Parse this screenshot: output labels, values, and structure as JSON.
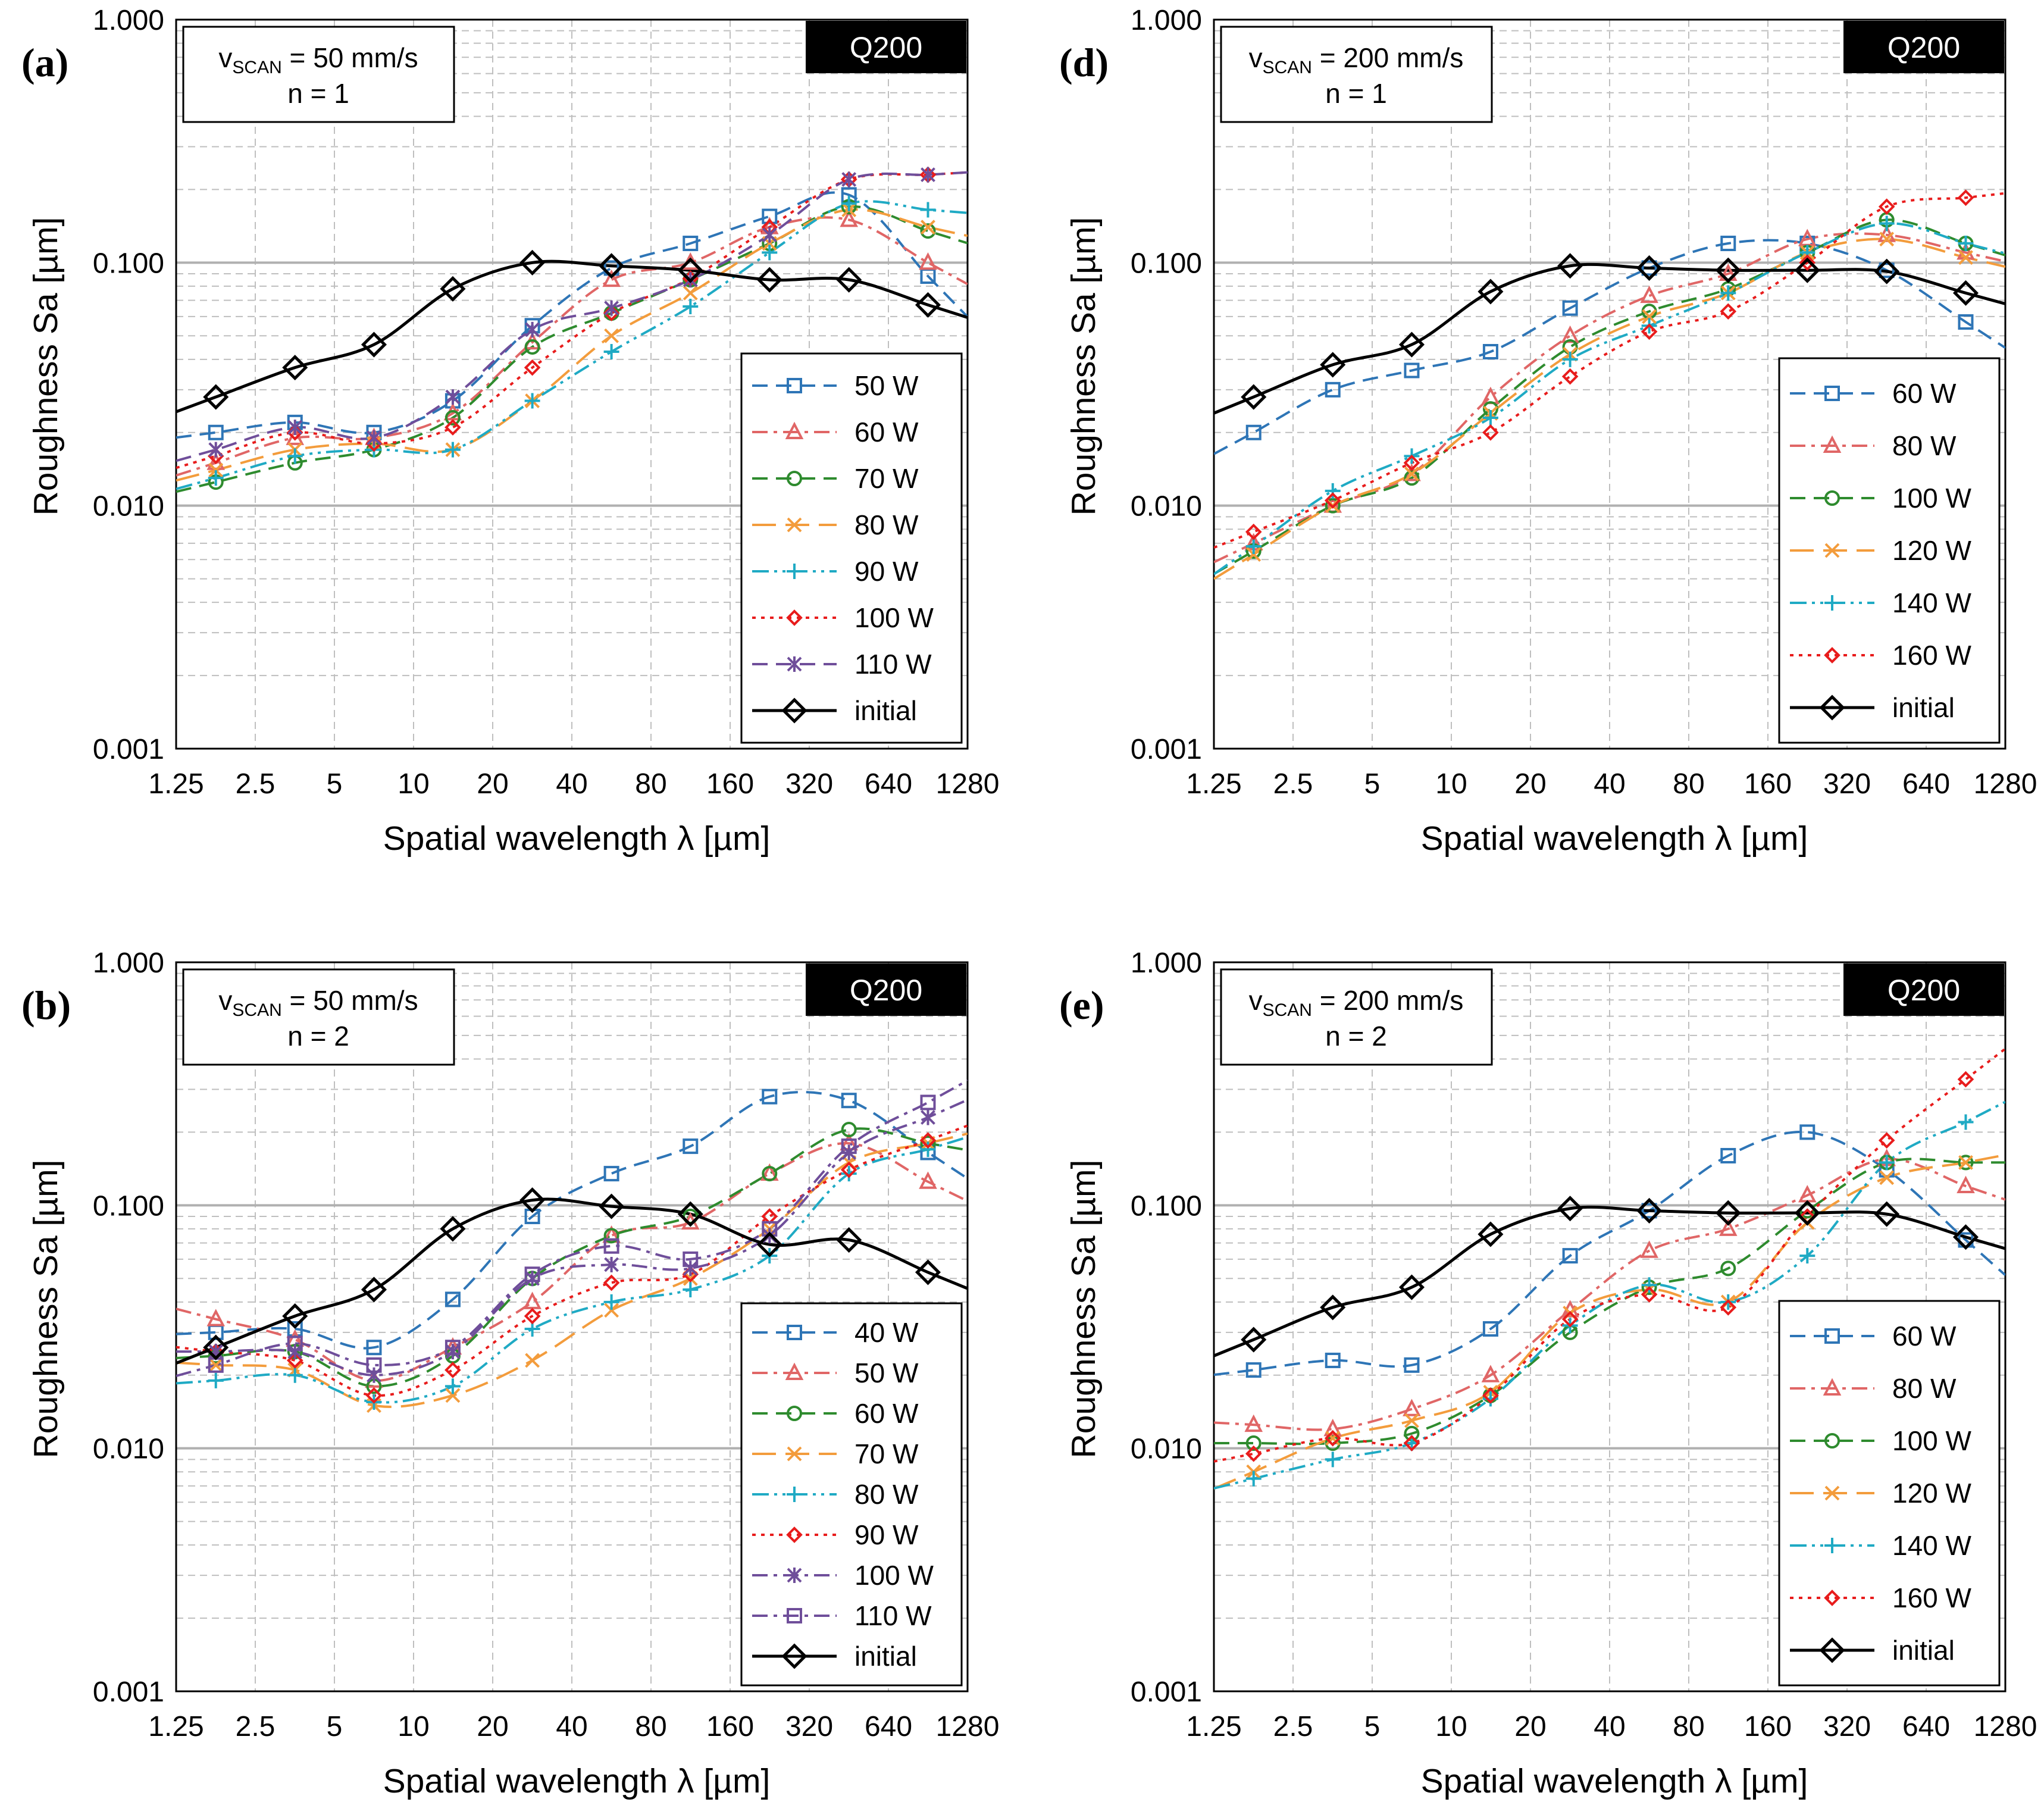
{
  "figure": {
    "y_axis_label": "Roughness Sa [µm]",
    "x_axis_label": "Spatial wavelength λ [µm]",
    "y_tick_labels": [
      "0.001",
      "0.010",
      "0.100",
      "1.000"
    ],
    "x_tick_labels": [
      "1.25",
      "2.5",
      "5",
      "10",
      "20",
      "40",
      "80",
      "160",
      "320",
      "640",
      "1280"
    ],
    "sample_badge": "Q200",
    "colors": {
      "blue": "#2E75B6",
      "salmon": "#E06666",
      "green": "#2E8B2E",
      "orange": "#F39C3C",
      "teal": "#1FAAC4",
      "red": "#E81C1C",
      "purple": "#6F4E9A",
      "black": "#000000",
      "badge_bg": "#000000",
      "badge_text": "#ffffff",
      "grid": "#bfbfbf"
    }
  },
  "chart_data": [
    {
      "id": "a",
      "type": "line",
      "panel_label": "(a)",
      "condition_line1_prefix": "v",
      "condition_line1_subscript": "SCAN",
      "condition_line1_suffix": " = 50 mm/s",
      "condition_line2": "n = 1",
      "badge": "Q200",
      "xscale": "log",
      "yscale": "log",
      "xlim": [
        1.25,
        1280
      ],
      "ylim": [
        0.001,
        1.0
      ],
      "x": [
        1.77,
        3.54,
        7.07,
        14.1,
        28.3,
        56.6,
        113,
        226,
        453,
        905
      ],
      "legend_position": "lower-right",
      "series": [
        {
          "name": "50 W",
          "color": "blue",
          "dash": "dash",
          "marker": "square",
          "values": [
            0.02,
            0.022,
            0.02,
            0.027,
            0.055,
            0.095,
            0.12,
            0.155,
            0.19,
            0.088
          ]
        },
        {
          "name": "60 W",
          "color": "salmon",
          "dash": "dashdot",
          "marker": "triangle",
          "values": [
            0.015,
            0.019,
            0.019,
            0.024,
            0.047,
            0.085,
            0.1,
            0.14,
            0.15,
            0.1
          ]
        },
        {
          "name": "70 W",
          "color": "green",
          "dash": "dash",
          "marker": "circle",
          "values": [
            0.0125,
            0.015,
            0.017,
            0.023,
            0.045,
            0.062,
            0.085,
            0.12,
            0.17,
            0.135
          ]
        },
        {
          "name": "80 W",
          "color": "orange",
          "dash": "longdash",
          "marker": "x",
          "values": [
            0.014,
            0.017,
            0.018,
            0.017,
            0.027,
            0.05,
            0.075,
            0.12,
            0.165,
            0.14
          ]
        },
        {
          "name": "90 W",
          "color": "teal",
          "dash": "dashdotdot",
          "marker": "plus",
          "values": [
            0.013,
            0.016,
            0.017,
            0.017,
            0.027,
            0.043,
            0.066,
            0.11,
            0.175,
            0.165
          ]
        },
        {
          "name": "100 W",
          "color": "red",
          "dash": "dot",
          "marker": "diamond",
          "values": [
            0.016,
            0.02,
            0.018,
            0.021,
            0.037,
            0.062,
            0.086,
            0.14,
            0.22,
            0.23
          ]
        },
        {
          "name": "110 W",
          "color": "purple",
          "dash": "dash",
          "marker": "star",
          "values": [
            0.017,
            0.021,
            0.019,
            0.028,
            0.053,
            0.065,
            0.085,
            0.13,
            0.22,
            0.23
          ]
        },
        {
          "name": "initial",
          "color": "black",
          "dash": "solid",
          "marker": "bigdiamond",
          "values": [
            0.028,
            0.037,
            0.046,
            0.078,
            0.1,
            0.097,
            0.093,
            0.085,
            0.085,
            0.067
          ]
        }
      ]
    },
    {
      "id": "d",
      "type": "line",
      "panel_label": "(d)",
      "condition_line1_prefix": "v",
      "condition_line1_subscript": "SCAN",
      "condition_line1_suffix": " = 200 mm/s",
      "condition_line2": "n = 1",
      "badge": "Q200",
      "xscale": "log",
      "yscale": "log",
      "xlim": [
        1.25,
        1280
      ],
      "ylim": [
        0.001,
        1.0
      ],
      "x": [
        1.77,
        3.54,
        7.07,
        14.1,
        28.3,
        56.6,
        113,
        226,
        453,
        905
      ],
      "legend_position": "lower-right",
      "series": [
        {
          "name": "60 W",
          "color": "blue",
          "dash": "dash",
          "marker": "square",
          "values": [
            0.02,
            0.03,
            0.036,
            0.043,
            0.065,
            0.095,
            0.12,
            0.12,
            0.093,
            0.057
          ]
        },
        {
          "name": "80 W",
          "color": "salmon",
          "dash": "dashdot",
          "marker": "triangle",
          "values": [
            0.007,
            0.01,
            0.0135,
            0.028,
            0.05,
            0.073,
            0.09,
            0.125,
            0.13,
            0.11
          ]
        },
        {
          "name": "100 W",
          "color": "green",
          "dash": "dash",
          "marker": "circle",
          "values": [
            0.0065,
            0.01,
            0.013,
            0.025,
            0.045,
            0.063,
            0.078,
            0.11,
            0.15,
            0.12
          ]
        },
        {
          "name": "120 W",
          "color": "orange",
          "dash": "longdash",
          "marker": "x",
          "values": [
            0.0063,
            0.01,
            0.0135,
            0.024,
            0.042,
            0.06,
            0.075,
            0.11,
            0.125,
            0.105
          ]
        },
        {
          "name": "140 W",
          "color": "teal",
          "dash": "dashdotdot",
          "marker": "plus",
          "values": [
            0.0068,
            0.0115,
            0.016,
            0.023,
            0.04,
            0.055,
            0.075,
            0.11,
            0.145,
            0.12
          ]
        },
        {
          "name": "160 W",
          "color": "red",
          "dash": "dot",
          "marker": "diamond",
          "values": [
            0.0078,
            0.0105,
            0.015,
            0.02,
            0.034,
            0.052,
            0.063,
            0.1,
            0.17,
            0.185
          ]
        },
        {
          "name": "initial",
          "color": "black",
          "dash": "solid",
          "marker": "bigdiamond",
          "values": [
            0.028,
            0.038,
            0.046,
            0.076,
            0.097,
            0.095,
            0.093,
            0.093,
            0.092,
            0.075
          ]
        }
      ]
    },
    {
      "id": "b",
      "type": "line",
      "panel_label": "(b)",
      "condition_line1_prefix": "v",
      "condition_line1_subscript": "SCAN",
      "condition_line1_suffix": " = 50 mm/s",
      "condition_line2": "n = 2",
      "badge": "Q200",
      "xscale": "log",
      "yscale": "log",
      "xlim": [
        1.25,
        1280
      ],
      "ylim": [
        0.001,
        1.0
      ],
      "x": [
        1.77,
        3.54,
        7.07,
        14.1,
        28.3,
        56.6,
        113,
        226,
        453,
        905
      ],
      "legend_position": "lower-right",
      "series": [
        {
          "name": "40 W",
          "color": "blue",
          "dash": "dash",
          "marker": "square",
          "values": [
            0.03,
            0.031,
            0.026,
            0.041,
            0.09,
            0.135,
            0.175,
            0.28,
            0.27,
            0.165
          ]
        },
        {
          "name": "50 W",
          "color": "salmon",
          "dash": "dashdot",
          "marker": "triangle",
          "values": [
            0.034,
            0.028,
            0.019,
            0.026,
            0.04,
            0.075,
            0.085,
            0.135,
            0.18,
            0.125
          ]
        },
        {
          "name": "60 W",
          "color": "green",
          "dash": "dash",
          "marker": "circle",
          "values": [
            0.024,
            0.025,
            0.018,
            0.024,
            0.05,
            0.075,
            0.09,
            0.135,
            0.205,
            0.18
          ]
        },
        {
          "name": "70 W",
          "color": "orange",
          "dash": "longdash",
          "marker": "x",
          "values": [
            0.022,
            0.021,
            0.015,
            0.0165,
            0.023,
            0.037,
            0.05,
            0.08,
            0.15,
            0.18
          ]
        },
        {
          "name": "80 W",
          "color": "teal",
          "dash": "dashdotdot",
          "marker": "plus",
          "values": [
            0.019,
            0.02,
            0.0155,
            0.018,
            0.031,
            0.04,
            0.045,
            0.062,
            0.135,
            0.17
          ]
        },
        {
          "name": "90 W",
          "color": "red",
          "dash": "dot",
          "marker": "diamond",
          "values": [
            0.025,
            0.023,
            0.0165,
            0.021,
            0.035,
            0.048,
            0.052,
            0.09,
            0.14,
            0.185
          ]
        },
        {
          "name": "100 W",
          "color": "purple",
          "dash": "dashdot",
          "marker": "star",
          "values": [
            0.025,
            0.025,
            0.02,
            0.025,
            0.05,
            0.057,
            0.055,
            0.075,
            0.165,
            0.23
          ]
        },
        {
          "name": "110 W",
          "color": "purple",
          "dash": "dashdot",
          "marker": "opensquare",
          "values": [
            0.022,
            0.027,
            0.022,
            0.026,
            0.052,
            0.068,
            0.06,
            0.08,
            0.175,
            0.265
          ]
        },
        {
          "name": "initial",
          "color": "black",
          "dash": "solid",
          "marker": "bigdiamond",
          "values": [
            0.026,
            0.035,
            0.045,
            0.08,
            0.105,
            0.099,
            0.092,
            0.069,
            0.072,
            0.053
          ]
        }
      ]
    },
    {
      "id": "e",
      "type": "line",
      "panel_label": "(e)",
      "condition_line1_prefix": "v",
      "condition_line1_subscript": "SCAN",
      "condition_line1_suffix": " = 200 mm/s",
      "condition_line2": "n = 2",
      "badge": "Q200",
      "xscale": "log",
      "yscale": "log",
      "xlim": [
        1.25,
        1280
      ],
      "ylim": [
        0.001,
        1.0
      ],
      "x": [
        1.77,
        3.54,
        7.07,
        14.1,
        28.3,
        56.6,
        113,
        226,
        453,
        905
      ],
      "legend_position": "lower-right",
      "series": [
        {
          "name": "60 W",
          "color": "blue",
          "dash": "dash",
          "marker": "square",
          "values": [
            0.021,
            0.023,
            0.022,
            0.031,
            0.062,
            0.095,
            0.16,
            0.2,
            0.14,
            0.072
          ]
        },
        {
          "name": "80 W",
          "color": "salmon",
          "dash": "dashdot",
          "marker": "triangle",
          "values": [
            0.0125,
            0.012,
            0.0145,
            0.02,
            0.037,
            0.065,
            0.08,
            0.11,
            0.155,
            0.12
          ]
        },
        {
          "name": "100 W",
          "color": "green",
          "dash": "dash",
          "marker": "circle",
          "values": [
            0.0105,
            0.0105,
            0.0115,
            0.0165,
            0.03,
            0.046,
            0.055,
            0.095,
            0.15,
            0.15
          ]
        },
        {
          "name": "120 W",
          "color": "orange",
          "dash": "longdash",
          "marker": "x",
          "values": [
            0.008,
            0.011,
            0.013,
            0.017,
            0.036,
            0.045,
            0.04,
            0.085,
            0.13,
            0.15
          ]
        },
        {
          "name": "140 W",
          "color": "teal",
          "dash": "dashdotdot",
          "marker": "plus",
          "values": [
            0.0075,
            0.009,
            0.0105,
            0.016,
            0.032,
            0.047,
            0.04,
            0.062,
            0.15,
            0.22
          ]
        },
        {
          "name": "160 W",
          "color": "red",
          "dash": "dot",
          "marker": "diamond",
          "values": [
            0.0095,
            0.011,
            0.0105,
            0.0165,
            0.034,
            0.043,
            0.038,
            0.09,
            0.185,
            0.33
          ]
        },
        {
          "name": "initial",
          "color": "black",
          "dash": "solid",
          "marker": "bigdiamond",
          "values": [
            0.028,
            0.038,
            0.046,
            0.076,
            0.097,
            0.095,
            0.093,
            0.093,
            0.092,
            0.074
          ]
        }
      ]
    }
  ]
}
